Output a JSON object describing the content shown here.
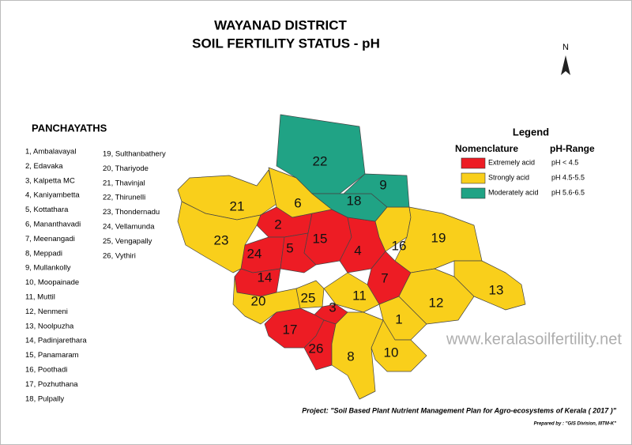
{
  "header": {
    "title": "WAYANAD DISTRICT",
    "subtitle": "SOIL FERTILITY STATUS -  pH"
  },
  "north": "N",
  "panchayaths": {
    "heading": "PANCHAYATHS",
    "items": [
      "1, Ambalavayal",
      "2, Edavaka",
      "3, Kalpetta MC",
      "4, Kaniyambetta",
      "5, Kottathara",
      "6, Mananthavadi",
      "7, Meenangadi",
      "8, Meppadi",
      "9, Mullankolly",
      "10, Moopainade",
      "11, Muttil",
      "12, Nenmeni",
      "13, Noolpuzha",
      "14, Padinjarethara",
      "15, Panamaram",
      "16, Poothadi",
      "17, Pozhuthana",
      "18, Pulpally",
      "19, Sulthanbathery",
      "20, Thariyode",
      "21, Thavinjal",
      "22, Thirunelli",
      "23, Thondernadu",
      "24, Vellamunda",
      "25, Vengapally",
      "26, Vythiri"
    ]
  },
  "legend": {
    "title": "Legend",
    "name_header": "Nomenclature",
    "range_header": "pH-Range",
    "items": [
      {
        "name": "Extremely acid",
        "range": "pH < 4.5",
        "color": "#ed1c24",
        "regions": [
          "2",
          "24",
          "5",
          "15",
          "4",
          "14",
          "7",
          "3",
          "17",
          "26"
        ]
      },
      {
        "name": "Strongly acid",
        "range": "pH 4.5-5.5",
        "color": "#f9cf1b",
        "regions": [
          "21",
          "6",
          "23",
          "16",
          "19",
          "20",
          "25",
          "11",
          "1",
          "12",
          "13",
          "10",
          "8"
        ]
      },
      {
        "name": "Moderately acid",
        "range": "pH 5.6-6.5",
        "color": "#20a385",
        "regions": [
          "22",
          "18",
          "9"
        ]
      }
    ]
  },
  "watermark": "www.keralasoilfertility.net",
  "footer": {
    "project": "Project: \"Soil Based Plant Nutrient Management Plan for Agro-ecosystems of Kerala ( 2017 )\"",
    "prepared": "Prepared by : \"GIS Division, IIITM-K\""
  }
}
